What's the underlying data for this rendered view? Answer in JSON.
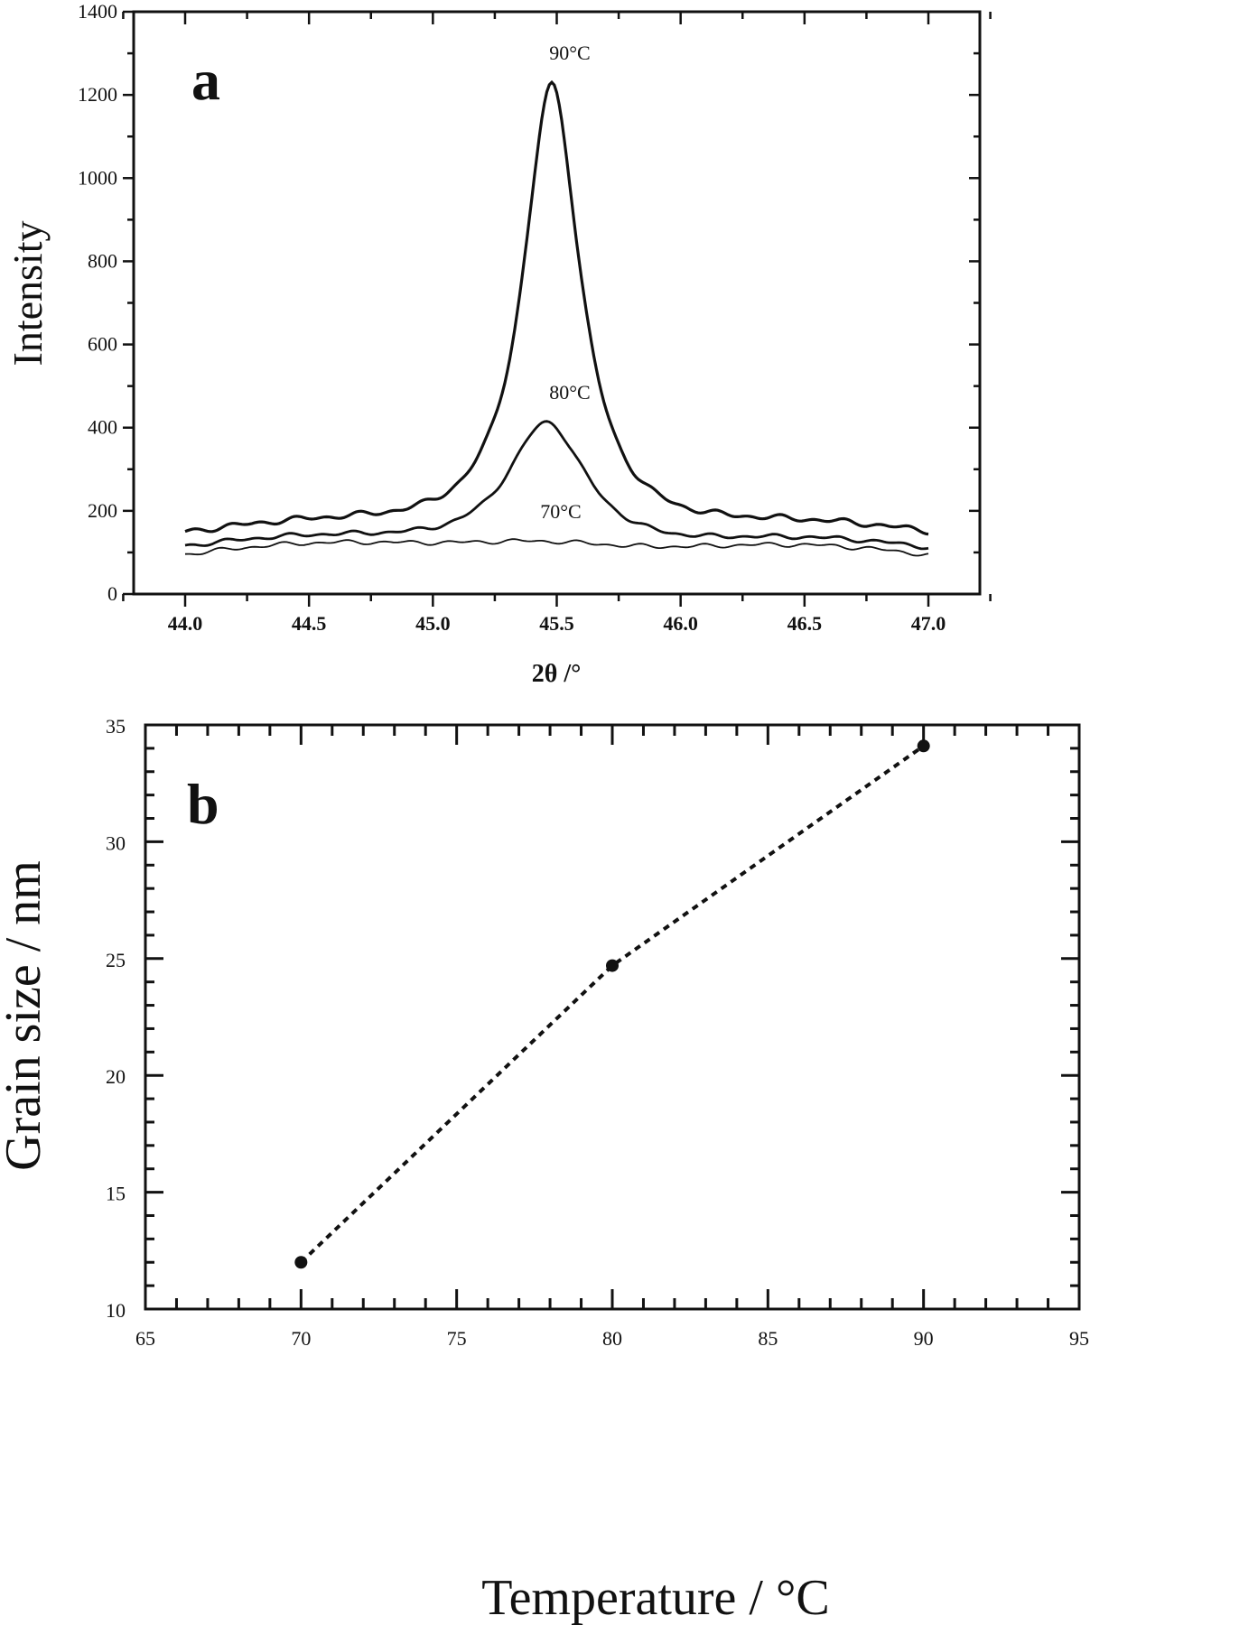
{
  "figure": {
    "panels": [
      "a",
      "b"
    ]
  },
  "panel_a": {
    "letter": "a",
    "ylabel": "Intensity",
    "xlabel": "2θ /°",
    "yticks": [
      "0",
      "200",
      "400",
      "600",
      "800",
      "1000",
      "1200",
      "1400"
    ],
    "xticks": [
      "44.0",
      "44.5",
      "45.0",
      "45.5",
      "46.0",
      "46.5",
      "47.0"
    ],
    "curve_labels": [
      "90°C",
      "80°C",
      "70°C"
    ]
  },
  "panel_b": {
    "letter": "b",
    "ylabel": "Grain size / nm",
    "xlabel": "Temperature / °C",
    "yticks": [
      "10",
      "15",
      "20",
      "25",
      "30",
      "35"
    ],
    "xticks": [
      "65",
      "70",
      "75",
      "80",
      "85",
      "90",
      "95"
    ]
  },
  "chart_data": [
    {
      "type": "line",
      "title": "a",
      "xlabel": "2θ /°",
      "ylabel": "Intensity",
      "xlim": [
        43.8,
        47.2
      ],
      "ylim": [
        0,
        1400
      ],
      "grid": false,
      "legend": "inline labels above peaks",
      "x": [
        44.0,
        44.25,
        44.5,
        44.75,
        45.0,
        45.2,
        45.3,
        45.4,
        45.48,
        45.55,
        45.65,
        45.8,
        46.0,
        46.25,
        46.5,
        46.75,
        47.0
      ],
      "series": [
        {
          "name": "90°C",
          "values": [
            140,
            155,
            165,
            180,
            230,
            340,
            520,
            900,
            1250,
            1100,
            640,
            320,
            200,
            165,
            155,
            150,
            140
          ]
        },
        {
          "name": "80°C",
          "values": [
            110,
            108,
            120,
            140,
            175,
            260,
            340,
            420,
            440,
            410,
            310,
            200,
            150,
            130,
            115,
            112,
            105
          ]
        },
        {
          "name": "70°C",
          "values": [
            90,
            100,
            105,
            115,
            130,
            140,
            150,
            150,
            158,
            155,
            148,
            140,
            125,
            110,
            100,
            98,
            85
          ]
        }
      ],
      "annotations": [
        {
          "text": "90°C",
          "x": 45.5,
          "y": 1290
        },
        {
          "text": "80°C",
          "x": 45.5,
          "y": 480
        },
        {
          "text": "70°C",
          "x": 45.45,
          "y": 185
        }
      ]
    },
    {
      "type": "line",
      "title": "b",
      "xlabel": "Temperature / °C",
      "ylabel": "Grain size / nm",
      "xlim": [
        65,
        95
      ],
      "ylim": [
        10,
        35
      ],
      "grid": false,
      "line_style": "dotted with filled circle markers",
      "x": [
        70,
        80,
        90
      ],
      "series": [
        {
          "name": "Grain size",
          "values": [
            12.0,
            24.7,
            34.1
          ]
        }
      ]
    }
  ]
}
